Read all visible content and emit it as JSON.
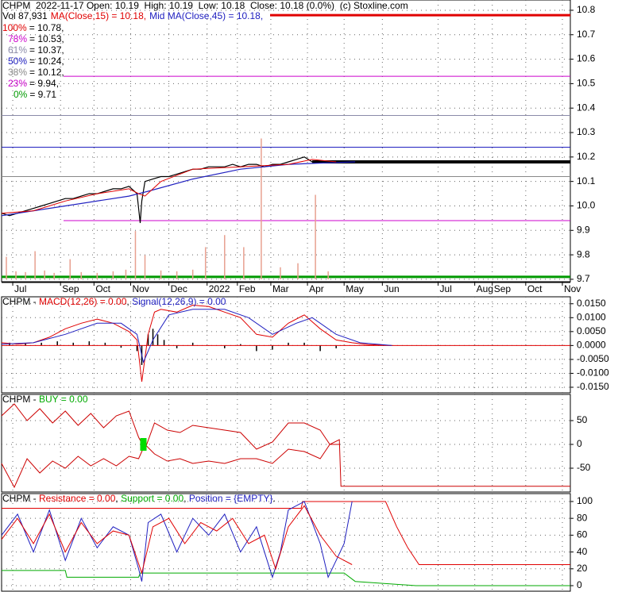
{
  "chart_data": [
    {
      "type": "line",
      "header": {
        "line1": "CHPM  2022-11-17 Open: 10.19  High: 10.19  Low: 10.18  Close: 10.18 (0.0%)  (c) Stoxline.com",
        "vol": "Vol 87,931",
        "ma15": "MA(Close,15) = 10.18,",
        "ma45": "Mid MA(Close,45) = 10.18,"
      },
      "levels": [
        {
          "percent": "100%",
          "text": "= 10.78,",
          "value": 10.78,
          "color": "#e00000"
        },
        {
          "percent": "78%",
          "text": "= 10.53,",
          "value": 10.53,
          "color": "#cc00cc"
        },
        {
          "percent": "61%",
          "text": "= 10.37,",
          "value": 10.37,
          "color": "#8a8aa8"
        },
        {
          "percent": "50%",
          "text": "= 10.24,",
          "value": 10.24,
          "color": "#2020c0"
        },
        {
          "percent": "38%",
          "text": "= 10.12,",
          "value": 10.12,
          "color": "#888888"
        },
        {
          "percent": "23%",
          "text": "= 9.94,",
          "value": 9.94,
          "color": "#cc00cc"
        },
        {
          "percent": "0%",
          "text": "= 9.71",
          "value": 9.71,
          "color": "#009900"
        }
      ],
      "xlim": [
        0,
        357
      ],
      "xticks": [
        {
          "value": 7,
          "label": "Jul"
        },
        {
          "value": 37,
          "label": "Sep"
        },
        {
          "value": 58,
          "label": "Oct"
        },
        {
          "value": 81,
          "label": "Nov"
        },
        {
          "value": 105,
          "label": "Dec"
        },
        {
          "value": 129,
          "label": "2022"
        },
        {
          "value": 148,
          "label": "Feb"
        },
        {
          "value": 169,
          "label": "Mar"
        },
        {
          "value": 192,
          "label": "Apr"
        },
        {
          "value": 215,
          "label": "May"
        },
        {
          "value": 239,
          "label": "Jun"
        },
        {
          "value": 274,
          "label": "Jul"
        },
        {
          "value": 297,
          "label": "Aug"
        },
        {
          "value": 308,
          "label": "Sep"
        },
        {
          "value": 329,
          "label": "Oct"
        },
        {
          "value": 352,
          "label": "Nov"
        }
      ],
      "ylim": [
        9.69,
        10.842
      ],
      "yticks": [
        10.8,
        10.7,
        10.6,
        10.5,
        10.4,
        10.3,
        10.2,
        10.1,
        {
          "value": 10,
          "label": "10.0"
        },
        9.9,
        9.8,
        9.7
      ],
      "grid": true,
      "volume": {
        "color": "#e8a090",
        "vlim": [
          0,
          700000
        ],
        "x": [
          3,
          9,
          15,
          21,
          27,
          33,
          43,
          50,
          60,
          70,
          78,
          84,
          90,
          100,
          110,
          120,
          128,
          140,
          152,
          163,
          175,
          186,
          197,
          205
        ],
        "values": [
          56000,
          20000,
          18000,
          70000,
          22000,
          16000,
          50000,
          18000,
          16000,
          20000,
          24000,
          120000,
          60000,
          22000,
          20000,
          24000,
          80000,
          110000,
          80000,
          350000,
          30000,
          40000,
          210000,
          20000
        ]
      },
      "series": [
        {
          "color": "#000000",
          "line_width": 1.2,
          "x": [
            0,
            5,
            10,
            15,
            20,
            25,
            30,
            35,
            40,
            45,
            50,
            55,
            60,
            65,
            70,
            75,
            80,
            85,
            87,
            88,
            90,
            95,
            100,
            105,
            110,
            115,
            120,
            125,
            130,
            135,
            140,
            145,
            150,
            155,
            160,
            165,
            170,
            175,
            180,
            185,
            190,
            195,
            200
          ],
          "values": [
            9.97,
            9.96,
            9.97,
            9.98,
            9.99,
            10.0,
            10.01,
            10.02,
            10.03,
            10.03,
            10.04,
            10.05,
            10.05,
            10.06,
            10.07,
            10.07,
            10.08,
            10.05,
            9.93,
            10.02,
            10.1,
            10.11,
            10.12,
            10.12,
            10.13,
            10.14,
            10.15,
            10.15,
            10.16,
            10.16,
            10.16,
            10.17,
            10.16,
            10.17,
            10.17,
            10.16,
            10.17,
            10.17,
            10.18,
            10.19,
            10.2,
            10.18,
            10.18
          ]
        },
        {
          "color": "#000000",
          "line_width": 4,
          "x": [
            195,
            357
          ],
          "values": [
            10.18,
            10.18
          ]
        },
        {
          "color": "#2020c0",
          "line_width": 1.2,
          "x": [
            0,
            40,
            80,
            86,
            92,
            120,
            150,
            180,
            200,
            222
          ],
          "values": [
            9.96,
            10.0,
            10.04,
            10.05,
            10.06,
            10.11,
            10.15,
            10.17,
            10.175,
            10.18
          ]
        },
        {
          "color": "#e00000",
          "line_width": 1,
          "x": [
            0,
            20,
            40,
            60,
            80,
            86,
            90,
            100,
            120,
            150,
            180,
            195,
            210
          ],
          "values": [
            9.97,
            9.98,
            10.02,
            10.05,
            10.07,
            10.05,
            10.04,
            10.1,
            10.15,
            10.16,
            10.17,
            10.19,
            10.18
          ]
        }
      ]
    },
    {
      "type": "line",
      "title_parts": [
        {
          "text": "CHPM - ",
          "color": "#000000"
        },
        {
          "text": "MACD(12,26) = 0.00",
          "color": "#e00000"
        },
        {
          "text": ", ",
          "color": "#000000"
        },
        {
          "text": "Signal(12,26,9) = 0.00",
          "color": "#2020c0"
        }
      ],
      "ylim": [
        -0.017,
        0.0175
      ],
      "yticks": [
        {
          "value": 0.015,
          "label": "0.0150"
        },
        {
          "value": 0.01,
          "label": "0.0100"
        },
        {
          "value": 0.005,
          "label": "0.0050"
        },
        {
          "value": 0,
          "label": "0.0000"
        },
        {
          "value": -0.005,
          "label": "-0.0050"
        },
        {
          "value": -0.01,
          "label": "-0.0100"
        },
        {
          "value": -0.015,
          "label": "-0.0150"
        }
      ],
      "histogram": {
        "color": "#000000",
        "x": [
          5,
          15,
          25,
          35,
          45,
          55,
          65,
          75,
          85,
          88,
          92,
          95,
          98,
          102,
          110,
          120,
          130,
          140,
          150,
          160,
          170,
          180,
          190,
          200,
          210
        ],
        "values": [
          0.001,
          0.0008,
          0.001,
          0.0015,
          0.001,
          0.0015,
          0.001,
          -0.0008,
          -0.002,
          -0.007,
          0.004,
          0.006,
          0.004,
          0.002,
          -0.001,
          0.001,
          0,
          -0.001,
          0.0005,
          -0.002,
          -0.0015,
          0.001,
          0.001,
          -0.002,
          -0.001
        ]
      },
      "series": [
        {
          "color": "#e00000",
          "line_width": 1,
          "x": [
            0,
            10,
            20,
            30,
            40,
            50,
            60,
            70,
            80,
            85,
            88,
            92,
            96,
            100,
            110,
            120,
            130,
            140,
            150,
            160,
            170,
            180,
            190,
            200,
            210,
            220,
            230,
            245
          ],
          "values": [
            0.001,
            0.0005,
            0.001,
            0.003,
            0.006,
            0.008,
            0.0095,
            0.008,
            0.005,
            0.002,
            -0.013,
            0.004,
            0.012,
            0.013,
            0.012,
            0.0145,
            0.014,
            0.012,
            0.01,
            0.004,
            0.003,
            0.008,
            0.011,
            0.006,
            0.002,
            0.001,
            0.0003,
            0
          ]
        },
        {
          "color": "#2020c0",
          "line_width": 1,
          "x": [
            0,
            20,
            40,
            60,
            75,
            85,
            89,
            95,
            105,
            120,
            140,
            155,
            170,
            185,
            195,
            210,
            225,
            245
          ],
          "values": [
            0.0005,
            0.001,
            0.004,
            0.008,
            0.008,
            0.004,
            -0.006,
            0.002,
            0.011,
            0.013,
            0.013,
            0.01,
            0.004,
            0.008,
            0.01,
            0.004,
            0.001,
            0
          ]
        }
      ]
    },
    {
      "type": "line",
      "title_parts": [
        {
          "text": "CHPM - ",
          "color": "#000000"
        },
        {
          "text": "BUY = 0.00",
          "color": "#00aa00"
        }
      ],
      "ylim": [
        -100,
        105
      ],
      "yticks": [
        50,
        0,
        -50
      ],
      "signals": {
        "color": "#00dd00",
        "x": [
          89
        ],
        "values": [
          0
        ]
      },
      "series": [
        {
          "color": "#cc0000",
          "line_width": 1,
          "x": [
            0,
            8,
            16,
            24,
            32,
            40,
            48,
            56,
            64,
            72,
            80,
            86,
            90,
            96,
            104,
            112,
            120,
            130,
            140,
            150,
            160,
            170,
            180,
            190,
            200,
            206,
            212
          ],
          "values": [
            60,
            85,
            50,
            75,
            45,
            70,
            40,
            65,
            35,
            60,
            70,
            15,
            -10,
            45,
            30,
            25,
            40,
            35,
            30,
            25,
            -10,
            5,
            45,
            45,
            30,
            0,
            0
          ]
        },
        {
          "color": "#cc0000",
          "line_width": 1,
          "x": [
            0,
            8,
            16,
            24,
            32,
            40,
            48,
            56,
            64,
            72,
            80,
            86,
            90,
            96,
            104,
            112,
            120,
            130,
            140,
            150,
            160,
            170,
            180,
            190,
            200,
            206,
            212,
            213,
            357
          ],
          "values": [
            -40,
            -90,
            -30,
            -60,
            -35,
            -50,
            -25,
            -45,
            -30,
            -45,
            -25,
            -30,
            0,
            -20,
            -35,
            -30,
            -40,
            -35,
            -40,
            -30,
            -30,
            -40,
            -10,
            -15,
            -30,
            0,
            10,
            -88,
            -88
          ]
        }
      ]
    },
    {
      "type": "line",
      "title_parts": [
        {
          "text": "CHPM - ",
          "color": "#000000"
        },
        {
          "text": "Resistance = 0.00",
          "color": "#e00000"
        },
        {
          "text": ", ",
          "color": "#000000"
        },
        {
          "text": "Support = 0.00",
          "color": "#00aa00"
        },
        {
          "text": ", ",
          "color": "#000000"
        },
        {
          "text": "Position = {EMPTY}",
          "color": "#2020c0"
        },
        {
          "text": ".",
          "color": "#000000"
        }
      ],
      "ylim": [
        -6.6,
        109.4
      ],
      "yticks": [
        100,
        80,
        60,
        40,
        20,
        0
      ],
      "series": [
        {
          "color": "#e00000",
          "line_width": 1,
          "x": [
            0,
            188,
            189,
            241,
            248,
            255,
            262,
            357
          ],
          "values": [
            92,
            92,
            100,
            100,
            70,
            45,
            25,
            25
          ]
        },
        {
          "color": "#00aa00",
          "line_width": 1,
          "x": [
            0,
            40,
            41,
            86,
            87,
            215,
            222,
            260,
            357
          ],
          "values": [
            18,
            18,
            10,
            10,
            15,
            15,
            5,
            0,
            0
          ]
        },
        {
          "color": "#2020c0",
          "line_width": 1,
          "x": [
            0,
            10,
            20,
            30,
            40,
            50,
            60,
            70,
            80,
            86,
            88,
            92,
            100,
            110,
            120,
            130,
            140,
            150,
            160,
            170,
            175,
            180,
            190,
            200,
            205,
            210,
            215,
            220
          ],
          "values": [
            60,
            85,
            40,
            90,
            30,
            80,
            45,
            70,
            60,
            20,
            5,
            75,
            85,
            40,
            80,
            60,
            85,
            40,
            70,
            10,
            40,
            90,
            100,
            50,
            10,
            30,
            50,
            100
          ]
        },
        {
          "color": "#e00000",
          "line_width": 1,
          "x": [
            0,
            10,
            20,
            30,
            40,
            50,
            60,
            70,
            80,
            88,
            95,
            105,
            115,
            125,
            135,
            145,
            155,
            165,
            172,
            180,
            190,
            200,
            210,
            220
          ],
          "values": [
            55,
            80,
            50,
            85,
            40,
            75,
            50,
            65,
            60,
            15,
            70,
            80,
            50,
            75,
            65,
            80,
            50,
            60,
            20,
            70,
            95,
            60,
            35,
            25
          ]
        }
      ]
    }
  ]
}
